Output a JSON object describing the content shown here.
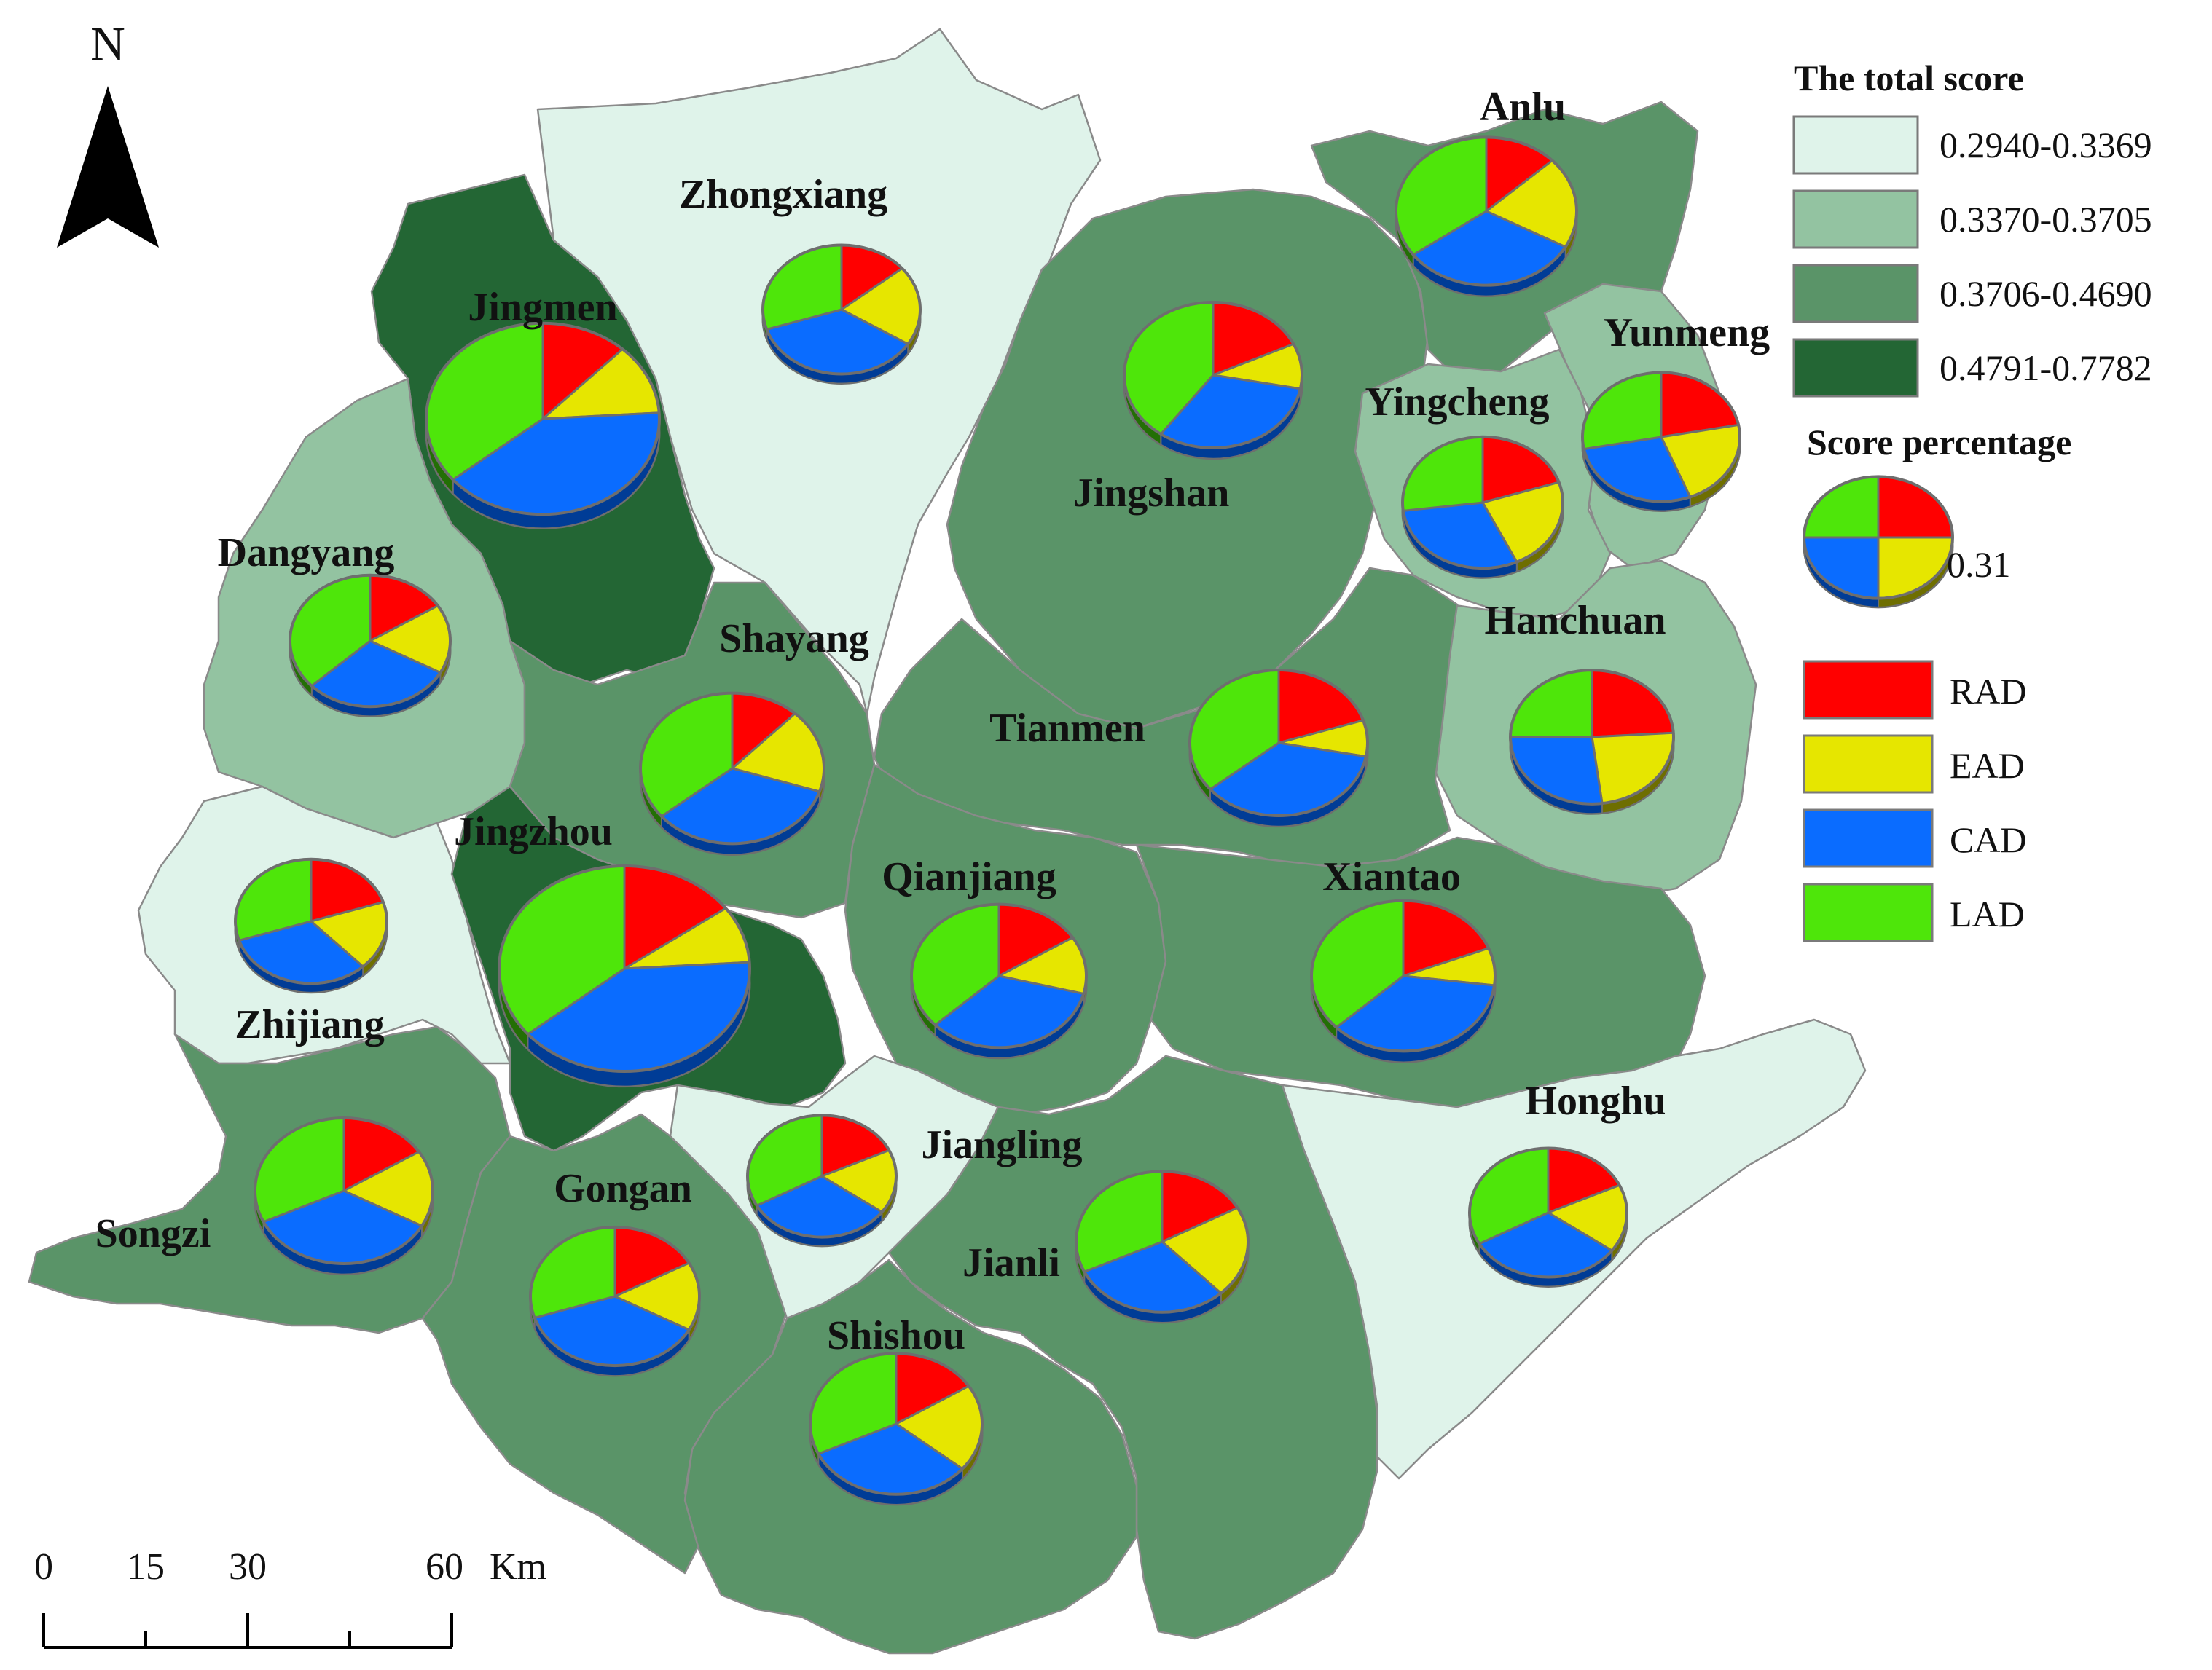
{
  "north_arrow": {
    "label": "N"
  },
  "scale_bar": {
    "ticks": [
      "0",
      "15",
      "30",
      "60"
    ],
    "unit": "Km"
  },
  "legend": {
    "score_title": "The total score",
    "score_classes": [
      {
        "label": "0.2940-0.3369",
        "color": "#dff3ea"
      },
      {
        "label": "0.3370-0.3705",
        "color": "#93c3a1"
      },
      {
        "label": "0.3706-0.4690",
        "color": "#5a9468"
      },
      {
        "label": "0.4791-0.7782",
        "color": "#236634"
      }
    ],
    "percentage_title": "Score percentage",
    "percentage_value": "0.31",
    "components": [
      {
        "label": "RAD",
        "color": "#ff0000"
      },
      {
        "label": "EAD",
        "color": "#e6e600"
      },
      {
        "label": "CAD",
        "color": "#0a6cff"
      },
      {
        "label": "LAD",
        "color": "#4ee60a"
      }
    ]
  },
  "counties": [
    {
      "name": "Zhongxiang",
      "class": 0,
      "shares": [
        0.14,
        0.2,
        0.36,
        0.3
      ]
    },
    {
      "name": "Jingmen",
      "class": 3,
      "shares": [
        0.12,
        0.12,
        0.4,
        0.36
      ]
    },
    {
      "name": "Anlu",
      "class": 2,
      "shares": [
        0.13,
        0.2,
        0.32,
        0.35
      ]
    },
    {
      "name": "Jingshan",
      "class": 2,
      "shares": [
        0.18,
        0.1,
        0.32,
        0.4
      ]
    },
    {
      "name": "Yunmeng",
      "class": 1,
      "shares": [
        0.22,
        0.22,
        0.28,
        0.28
      ]
    },
    {
      "name": "Yingcheng",
      "class": 1,
      "shares": [
        0.2,
        0.23,
        0.3,
        0.27
      ]
    },
    {
      "name": "Dangyang",
      "class": 1,
      "shares": [
        0.16,
        0.17,
        0.3,
        0.37
      ]
    },
    {
      "name": "Shayang",
      "class": 2,
      "shares": [
        0.12,
        0.18,
        0.34,
        0.36
      ]
    },
    {
      "name": "Tianmen",
      "class": 2,
      "shares": [
        0.2,
        0.08,
        0.36,
        0.36
      ]
    },
    {
      "name": "Hanchuan",
      "class": 1,
      "shares": [
        0.24,
        0.24,
        0.27,
        0.25
      ]
    },
    {
      "name": "Jingzhou",
      "class": 3,
      "shares": [
        0.15,
        0.09,
        0.4,
        0.36
      ]
    },
    {
      "name": "Zhijiang",
      "class": 0,
      "shares": [
        0.2,
        0.18,
        0.32,
        0.3
      ]
    },
    {
      "name": "Qianjiang",
      "class": 2,
      "shares": [
        0.16,
        0.13,
        0.34,
        0.37
      ]
    },
    {
      "name": "Xiantao",
      "class": 2,
      "shares": [
        0.19,
        0.08,
        0.36,
        0.37
      ]
    },
    {
      "name": "Honghu",
      "class": 0,
      "shares": [
        0.18,
        0.17,
        0.32,
        0.33
      ]
    },
    {
      "name": "Songzi",
      "class": 2,
      "shares": [
        0.16,
        0.17,
        0.35,
        0.32
      ]
    },
    {
      "name": "Jiangling",
      "class": 0,
      "shares": [
        0.18,
        0.17,
        0.32,
        0.33
      ]
    },
    {
      "name": "Gongan",
      "class": 2,
      "shares": [
        0.17,
        0.16,
        0.37,
        0.3
      ]
    },
    {
      "name": "Jianli",
      "class": 2,
      "shares": [
        0.17,
        0.21,
        0.3,
        0.32
      ]
    },
    {
      "name": "Shishou",
      "class": 2,
      "shares": [
        0.16,
        0.2,
        0.32,
        0.32
      ]
    }
  ]
}
